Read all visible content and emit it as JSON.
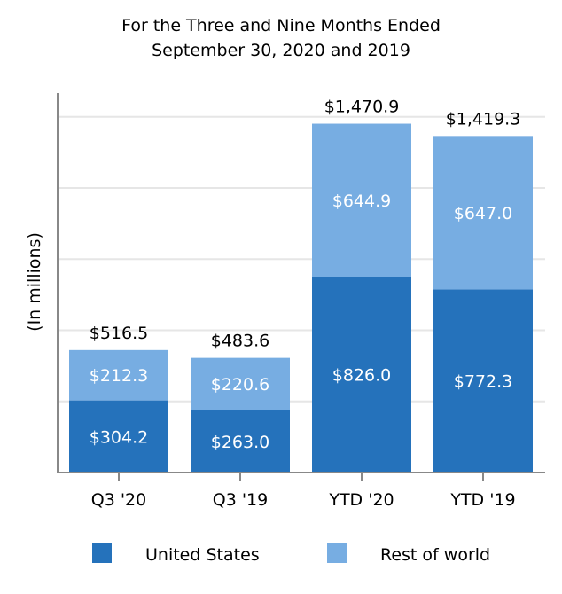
{
  "chart_data": {
    "type": "bar",
    "stacked": true,
    "title": [
      "For the Three and Nine Months Ended",
      "September 30, 2020 and 2019"
    ],
    "xlabel": "",
    "ylabel": "(In millions)",
    "ylim": [
      0,
      1600
    ],
    "grid": true,
    "legend_position": "bottom",
    "categories": [
      "Q3 '20",
      "Q3 '19",
      "YTD '20",
      "YTD '19"
    ],
    "series": [
      {
        "name": "United States",
        "color": "#2572bb",
        "values": [
          304.2,
          263.0,
          826.0,
          772.3
        ],
        "labels": [
          "$304.2",
          "$263.0",
          "$826.0",
          "$772.3"
        ]
      },
      {
        "name": "Rest of world",
        "color": "#77ade2",
        "values": [
          212.3,
          220.6,
          644.9,
          647.0
        ],
        "labels": [
          "$212.3",
          "$220.6",
          "$644.9",
          "$647.0"
        ]
      }
    ],
    "totals": [
      516.5,
      483.6,
      1470.9,
      1419.3
    ],
    "total_labels": [
      "$516.5",
      "$483.6",
      "$1,470.9",
      "$1,419.3"
    ]
  }
}
